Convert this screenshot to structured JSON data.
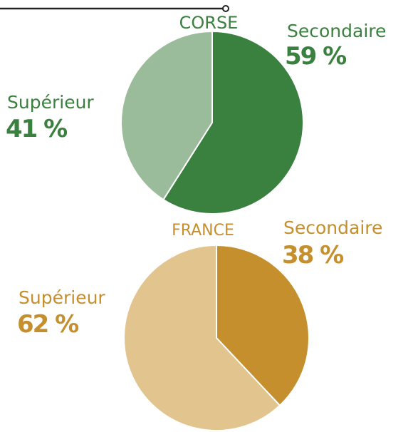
{
  "chart_data": [
    {
      "type": "pie",
      "title": "CORSE",
      "categories": [
        "Secondaire",
        "Supérieur"
      ],
      "values": [
        59,
        41
      ],
      "value_labels": [
        "59 %",
        "41 %"
      ],
      "colors": [
        "#3a803f",
        "#9bbc9a"
      ]
    },
    {
      "type": "pie",
      "title": "FRANCE",
      "categories": [
        "Secondaire",
        "Supérieur"
      ],
      "values": [
        38,
        62
      ],
      "value_labels": [
        "38 %",
        "62 %"
      ],
      "colors": [
        "#c58f2e",
        "#e2c48f"
      ]
    }
  ]
}
